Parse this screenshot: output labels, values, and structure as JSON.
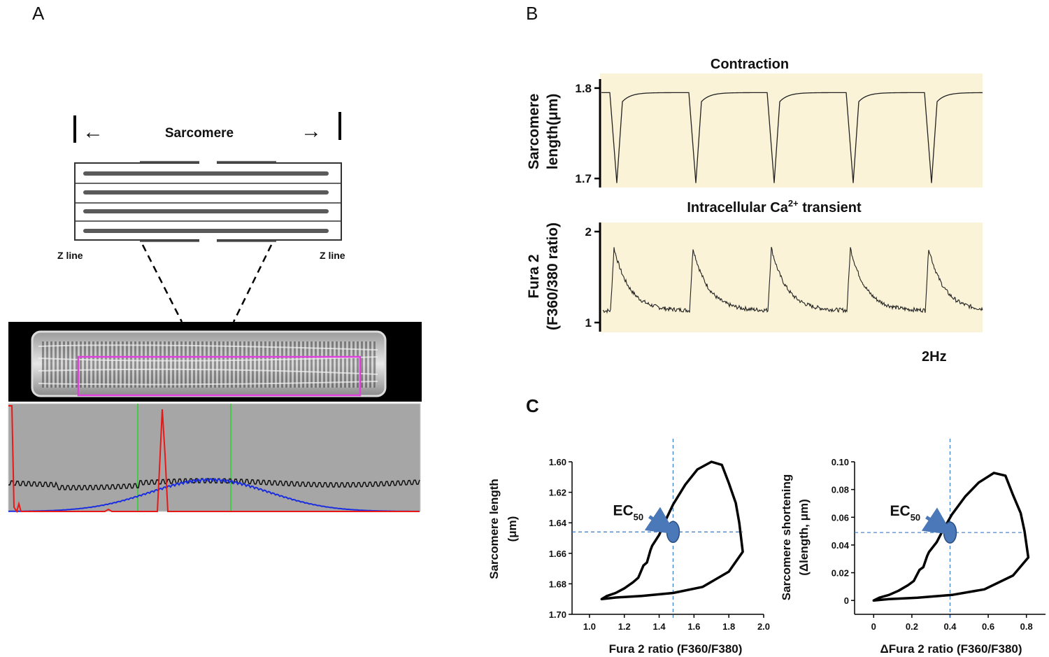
{
  "panels": {
    "a": "A",
    "b": "B",
    "c": "C"
  },
  "panel_a": {
    "sarcomere_label": "Sarcomere",
    "z_line_left": "Z line",
    "z_line_right": "Z line",
    "left_arrow": "←",
    "right_arrow": "→"
  },
  "panel_b": {
    "contraction_title": "Contraction",
    "ca_title_pre": "Intracellular Ca",
    "ca_title_sup": "2+",
    "ca_title_post": " transient",
    "top_ylabel_1": "Sarcomere",
    "top_ylabel_2": "length(μm)",
    "bottom_ylabel_1": "Fura 2",
    "bottom_ylabel_2": "(F360/380 ratio)",
    "frequency": "2Hz",
    "panel_bg": "#faf3d7"
  },
  "panel_c": {
    "left_ylabel_1": "Sarcomere length",
    "left_ylabel_2": "(μm)",
    "left_xlabel": "Fura 2 ratio (F360/F380)",
    "right_ylabel_1": "Sarcomere shortening",
    "right_ylabel_2": "(Δlength, μm)",
    "right_xlabel": "ΔFura 2 ratio (F360/F380)",
    "ec_label": "EC",
    "ec_sub": "50",
    "marker_color": "#4a78b8"
  },
  "chart_data": [
    {
      "type": "line",
      "title": "Contraction",
      "ylabel": "Sarcomere length(μm)",
      "ylim": [
        1.69,
        1.81
      ],
      "yticks": [
        1.8,
        1.7
      ],
      "ytick_labels": [
        "1.8",
        "1.7"
      ],
      "baseline": 1.795,
      "trough": 1.695,
      "n_beats": 5,
      "frequency": "2Hz"
    },
    {
      "type": "line",
      "title": "Intracellular Ca2+ transient",
      "ylabel": "Fura 2 (F360/380 ratio)",
      "ylim": [
        0.9,
        2.1
      ],
      "yticks": [
        2,
        1
      ],
      "ytick_labels": [
        "2",
        "1"
      ],
      "baseline": 1.13,
      "peak": 1.82,
      "n_beats": 5
    },
    {
      "type": "line",
      "xlabel": "Fura 2 ratio (F360/F380)",
      "ylabel": "Sarcomere length (μm)",
      "xlim": [
        0.9,
        2.0
      ],
      "ylim": [
        1.6,
        1.7
      ],
      "y_inverted": true,
      "xticks": [
        1.0,
        1.2,
        1.4,
        1.6,
        1.8,
        2.0
      ],
      "xtick_labels": [
        "1.0",
        "1.2",
        "1.4",
        "1.6",
        "1.8",
        "2.0"
      ],
      "yticks": [
        1.6,
        1.62,
        1.64,
        1.66,
        1.68,
        1.7
      ],
      "ytick_labels": [
        "1.60",
        "1.62",
        "1.64",
        "1.66",
        "1.68",
        "1.70"
      ],
      "loop": [
        [
          1.07,
          1.69
        ],
        [
          1.1,
          1.688
        ],
        [
          1.15,
          1.686
        ],
        [
          1.2,
          1.683
        ],
        [
          1.25,
          1.679
        ],
        [
          1.28,
          1.676
        ],
        [
          1.31,
          1.668
        ],
        [
          1.33,
          1.666
        ],
        [
          1.35,
          1.658
        ],
        [
          1.36,
          1.655
        ],
        [
          1.4,
          1.648
        ],
        [
          1.43,
          1.64
        ],
        [
          1.48,
          1.628
        ],
        [
          1.55,
          1.615
        ],
        [
          1.62,
          1.605
        ],
        [
          1.7,
          1.6
        ],
        [
          1.76,
          1.602
        ],
        [
          1.8,
          1.614
        ],
        [
          1.84,
          1.627
        ],
        [
          1.86,
          1.64
        ],
        [
          1.88,
          1.659
        ],
        [
          1.8,
          1.672
        ],
        [
          1.65,
          1.682
        ],
        [
          1.48,
          1.686
        ],
        [
          1.3,
          1.688
        ],
        [
          1.15,
          1.689
        ],
        [
          1.07,
          1.69
        ]
      ],
      "ec50": {
        "x": 1.48,
        "y": 1.646
      }
    },
    {
      "type": "line",
      "xlabel": "ΔFura 2 ratio (F360/F380)",
      "ylabel": "Sarcomere shortening (Δlength, μm)",
      "xlim": [
        -0.1,
        0.9
      ],
      "ylim": [
        -0.01,
        0.1
      ],
      "xticks": [
        0,
        0.2,
        0.4,
        0.6,
        0.8
      ],
      "xtick_labels": [
        "0",
        "0.2",
        "0.4",
        "0.6",
        "0.8"
      ],
      "yticks": [
        0,
        0.02,
        0.04,
        0.06,
        0.08,
        0.1
      ],
      "ytick_labels": [
        "0",
        "0.02",
        "0.04",
        "0.06",
        "0.08",
        "0.10"
      ],
      "loop": [
        [
          0,
          0
        ],
        [
          0.03,
          0.002
        ],
        [
          0.08,
          0.004
        ],
        [
          0.13,
          0.007
        ],
        [
          0.18,
          0.011
        ],
        [
          0.21,
          0.014
        ],
        [
          0.24,
          0.022
        ],
        [
          0.26,
          0.024
        ],
        [
          0.28,
          0.032
        ],
        [
          0.29,
          0.035
        ],
        [
          0.33,
          0.042
        ],
        [
          0.36,
          0.05
        ],
        [
          0.41,
          0.062
        ],
        [
          0.48,
          0.075
        ],
        [
          0.55,
          0.085
        ],
        [
          0.63,
          0.092
        ],
        [
          0.69,
          0.09
        ],
        [
          0.73,
          0.076
        ],
        [
          0.77,
          0.063
        ],
        [
          0.79,
          0.05
        ],
        [
          0.81,
          0.031
        ],
        [
          0.73,
          0.018
        ],
        [
          0.58,
          0.008
        ],
        [
          0.41,
          0.004
        ],
        [
          0.23,
          0.002
        ],
        [
          0.08,
          0.001
        ],
        [
          0,
          0
        ]
      ],
      "ec50": {
        "x": 0.4,
        "y": 0.049
      }
    }
  ]
}
